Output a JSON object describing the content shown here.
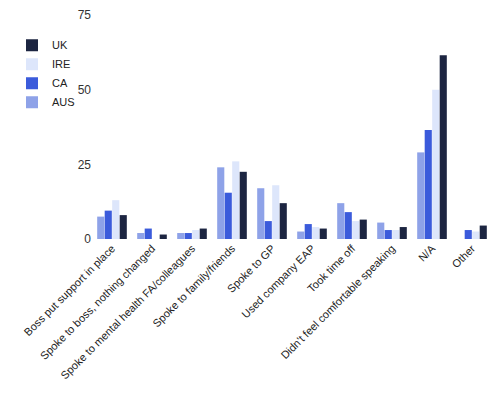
{
  "chart_data": {
    "type": "bar",
    "categories": [
      "Boss put support in place",
      "Spoke to boss, nothing changed",
      "Spoke to mental health FA/colleagues",
      "Spoke to family/friends",
      "Spoke to GP",
      "Used company EAP",
      "Took time off",
      "Didn't feel comfortable speaking",
      "N/A",
      "Other"
    ],
    "series": [
      {
        "name": "AUS",
        "color": "#8ea2e8",
        "values": [
          7.5,
          2,
          2,
          24,
          17,
          2.5,
          12,
          5.5,
          29,
          0
        ]
      },
      {
        "name": "CA",
        "color": "#3b5bdb",
        "values": [
          9.5,
          3.5,
          2,
          15.5,
          6,
          5,
          9,
          3,
          36.5,
          3
        ]
      },
      {
        "name": "IRE",
        "color": "#dde6fb",
        "values": [
          13,
          0,
          3,
          26,
          18,
          4,
          6,
          3,
          50,
          2.5
        ]
      },
      {
        "name": "UK",
        "color": "#1c2541",
        "values": [
          8,
          1.5,
          3.5,
          22.5,
          12,
          3.5,
          6.5,
          4,
          61.5,
          4.5
        ]
      }
    ],
    "ylim": [
      0,
      75
    ],
    "yticks": [
      0,
      25,
      50,
      75
    ],
    "grid": false,
    "legend": "top left"
  }
}
